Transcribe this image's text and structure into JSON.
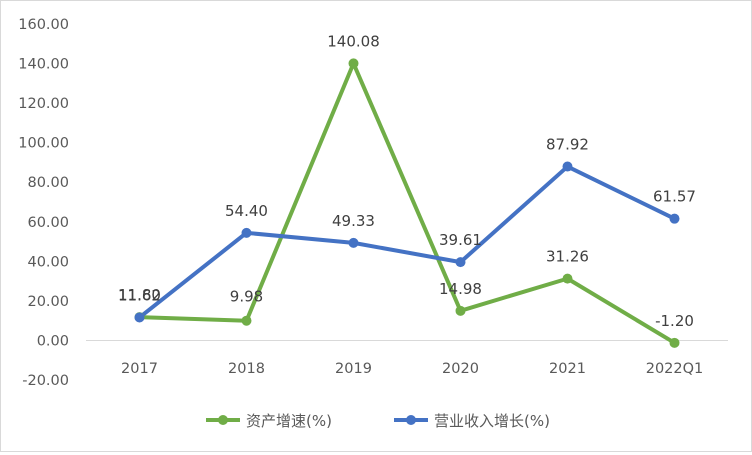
{
  "chart_data": {
    "type": "line",
    "categories": [
      "2017",
      "2018",
      "2019",
      "2020",
      "2021",
      "2022Q1"
    ],
    "series": [
      {
        "name": "资产增速(%)",
        "color": "#70ad47",
        "values": [
          11.8,
          9.98,
          140.08,
          14.98,
          31.26,
          -1.2
        ],
        "labels": [
          "11.80",
          "9.98",
          "140.08",
          "14.98",
          "31.26",
          "-1.20"
        ]
      },
      {
        "name": "营业收入增长(%)",
        "color": "#4472c4",
        "values": [
          11.62,
          54.4,
          49.33,
          39.61,
          87.92,
          61.57
        ],
        "labels": [
          "11.62",
          "54.40",
          "49.33",
          "39.61",
          "87.92",
          "61.57"
        ]
      }
    ],
    "ylim": [
      -20,
      160
    ],
    "yticks": [
      "-20.00",
      "0.00",
      "20.00",
      "40.00",
      "60.00",
      "80.00",
      "100.00",
      "120.00",
      "140.00",
      "160.00"
    ],
    "ytick_values": [
      -20,
      0,
      20,
      40,
      60,
      80,
      100,
      120,
      140,
      160
    ],
    "legend_position": "bottom",
    "grid": false,
    "axis_color": "#d9d9d9",
    "text_color": "#595959"
  }
}
